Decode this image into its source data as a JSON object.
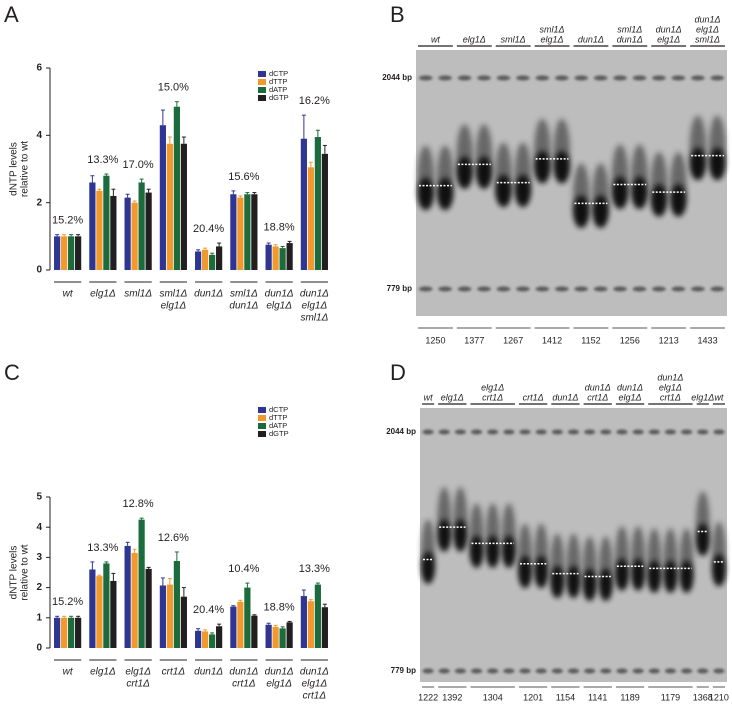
{
  "panels": [
    "A",
    "B",
    "C",
    "D"
  ],
  "chart_data": [
    {
      "type": "bar",
      "ylabel": [
        "dNTP levels",
        "relative to wt"
      ],
      "categories": [
        [
          "wt"
        ],
        [
          "elg1Δ"
        ],
        [
          "sml1Δ"
        ],
        [
          "sml1Δ",
          "elg1Δ"
        ],
        [
          "dun1Δ"
        ],
        [
          "sml1Δ",
          "dun1Δ"
        ],
        [
          "dun1Δ",
          "elg1Δ"
        ],
        [
          "dun1Δ",
          "elg1Δ",
          "sml1Δ"
        ]
      ],
      "annotations": [
        "15.2%",
        "13.3%",
        "17.0%",
        "15.0%",
        "20.4%",
        "15.6%",
        "18.8%",
        "16.2%"
      ],
      "series": [
        {
          "name": "dCTP",
          "color": "#2e3592",
          "values": [
            1,
            2.6,
            2.15,
            4.3,
            0.55,
            2.25,
            0.75,
            3.9
          ],
          "errors": [
            0.05,
            0.2,
            0.1,
            0.45,
            0.05,
            0.1,
            0.05,
            0.7
          ]
        },
        {
          "name": "dTTP",
          "color": "#f2992e",
          "values": [
            1,
            2.35,
            2.0,
            3.75,
            0.6,
            2.15,
            0.7,
            3.05
          ],
          "errors": [
            0.05,
            0.05,
            0.05,
            0.2,
            0.05,
            0.05,
            0.05,
            0.15
          ]
        },
        {
          "name": "dATP",
          "color": "#1c6b3c",
          "values": [
            1,
            2.8,
            2.6,
            4.85,
            0.45,
            2.25,
            0.65,
            3.95
          ],
          "errors": [
            0.05,
            0.05,
            0.1,
            0.15,
            0.05,
            0.05,
            0.05,
            0.2
          ]
        },
        {
          "name": "dGTP",
          "color": "#231f20",
          "values": [
            1,
            2.2,
            2.3,
            3.75,
            0.7,
            2.25,
            0.8,
            3.45
          ],
          "errors": [
            0.05,
            0.2,
            0.1,
            0.2,
            0.1,
            0.05,
            0.05,
            0.25
          ]
        }
      ],
      "ylim": [
        0,
        6
      ],
      "yticks": [
        0,
        2,
        4,
        6
      ]
    },
    {
      "type": "bar",
      "ylabel": [
        "dNTP levels",
        "relative to wt"
      ],
      "categories": [
        [
          "wt"
        ],
        [
          "elg1Δ"
        ],
        [
          "elg1Δ",
          "crt1Δ"
        ],
        [
          "crt1Δ"
        ],
        [
          "dun1Δ"
        ],
        [
          "dun1Δ",
          "crt1Δ"
        ],
        [
          "dun1Δ",
          "elg1Δ"
        ],
        [
          "dun1Δ",
          "elg1Δ",
          "crt1Δ"
        ]
      ],
      "annotations": [
        "15.2%",
        "13.3%",
        "12.8%",
        "12.6%",
        "20.4%",
        "10.4%",
        "18.8%",
        "13.3%"
      ],
      "series": [
        {
          "name": "dCTP",
          "color": "#2e3592",
          "values": [
            1,
            2.6,
            3.38,
            2.07,
            0.57,
            1.37,
            0.77,
            1.72
          ],
          "errors": [
            0.05,
            0.25,
            0.12,
            0.25,
            0.07,
            0.03,
            0.05,
            0.2
          ]
        },
        {
          "name": "dTTP",
          "color": "#f2992e",
          "values": [
            1,
            2.38,
            3.15,
            2.1,
            0.55,
            1.53,
            0.7,
            1.55
          ],
          "errors": [
            0.05,
            0.03,
            0.12,
            0.2,
            0.05,
            0.05,
            0.05,
            0.05
          ]
        },
        {
          "name": "dATP",
          "color": "#1c6b3c",
          "values": [
            1,
            2.8,
            4.25,
            2.88,
            0.45,
            2.0,
            0.65,
            2.1
          ],
          "errors": [
            0.05,
            0.05,
            0.05,
            0.3,
            0.05,
            0.15,
            0.05,
            0.05
          ]
        },
        {
          "name": "dGTP",
          "color": "#231f20",
          "values": [
            1,
            2.22,
            2.62,
            1.7,
            0.72,
            1.07,
            0.85,
            1.35
          ],
          "errors": [
            0.05,
            0.25,
            0.05,
            0.3,
            0.07,
            0.03,
            0.03,
            0.1
          ]
        }
      ],
      "ylim": [
        0,
        5
      ],
      "yticks": [
        0,
        1,
        2,
        3,
        4,
        5
      ]
    }
  ],
  "gels": [
    {
      "markers": [
        {
          "value": 2044,
          "label": "2044 bp"
        },
        {
          "value": 779,
          "label": "779 bp"
        }
      ],
      "groups": [
        {
          "label": [
            "wt"
          ],
          "number": 1250
        },
        {
          "label": [
            "elg1Δ"
          ],
          "number": 1377
        },
        {
          "label": [
            "sml1Δ"
          ],
          "number": 1267
        },
        {
          "label": [
            "sml1Δ",
            "elg1Δ"
          ],
          "number": 1412
        },
        {
          "label": [
            "dun1Δ"
          ],
          "number": 1152
        },
        {
          "label": [
            "sml1Δ",
            "dun1Δ"
          ],
          "number": 1256
        },
        {
          "label": [
            "dun1Δ",
            "elg1Δ"
          ],
          "number": 1213
        },
        {
          "label": [
            "dun1Δ",
            "elg1Δ",
            "sml1Δ"
          ],
          "number": 1433
        }
      ]
    },
    {
      "markers": [
        {
          "value": 2044,
          "label": "2044 bp"
        },
        {
          "value": 779,
          "label": "779 bp"
        }
      ],
      "groups": [
        {
          "label": [
            "wt"
          ],
          "number": 1222
        },
        {
          "label": [
            "elg1Δ"
          ],
          "number": 1392
        },
        {
          "label": [
            "elg1Δ",
            "crt1Δ"
          ],
          "number": 1304
        },
        {
          "label": [
            "crt1Δ"
          ],
          "number": 1201
        },
        {
          "label": [
            "dun1Δ"
          ],
          "number": 1154
        },
        {
          "label": [
            "dun1Δ",
            "crt1Δ"
          ],
          "number": 1141
        },
        {
          "label": [
            "dun1Δ",
            "elg1Δ"
          ],
          "number": 1189
        },
        {
          "label": [
            "dun1Δ",
            "elg1Δ",
            "crt1Δ"
          ],
          "number": 1179
        },
        {
          "label": [
            "elg1Δ"
          ],
          "number": 1368
        },
        {
          "label": [
            "wt"
          ],
          "number": 1210
        }
      ]
    }
  ]
}
